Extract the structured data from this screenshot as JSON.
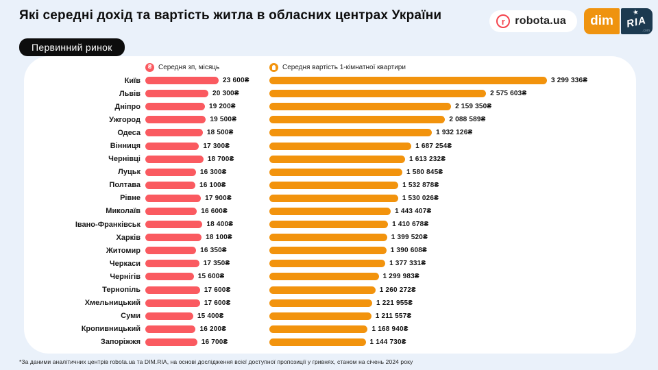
{
  "page": {
    "title": "Які середні дохід та вартість житла в обласних центрах України",
    "badge": "Первинний ринок",
    "footnote": "*За даними аналітичних центрів  robota.ua та DIM.RIA, на основі дослідження всієї доступної пропозиції у гривнях, станом на січень 2024 року"
  },
  "logos": {
    "robota": "robota.ua",
    "robota_icon_letter": "r",
    "dim": "dim",
    "ria": "RIA",
    "ria_star": "★",
    "ria_suffix": ".com"
  },
  "legend": {
    "salary": "Середня зп, місяць",
    "apartment": "Середня вартість 1-кімнатної квартири"
  },
  "colors": {
    "background": "#EAF1FA",
    "card": "#FFFFFF",
    "badge_bg": "#0D0D0D",
    "salary_bar": "#FA5A60",
    "apartment_bar": "#F2930D",
    "dim_box": "#EF930F",
    "ria_box": "#1C3A50",
    "robota_red": "#F4434C"
  },
  "chart_data": {
    "type": "bar",
    "orientation": "horizontal",
    "title": "Які середні дохід та вартість житла в обласних центрах України",
    "subtitle": "Первинний ринок",
    "legend_position": "top",
    "grid": false,
    "categories": [
      "Київ",
      "Львів",
      "Дніпро",
      "Ужгород",
      "Одеса",
      "Вінниця",
      "Чернівці",
      "Луцьк",
      "Полтава",
      "Рівне",
      "Миколаїв",
      "Івано-Франківськ",
      "Харків",
      "Житомир",
      "Черкаси",
      "Чернігів",
      "Тернопіль",
      "Хмельницький",
      "Суми",
      "Кропивницький",
      "Запоріжжя"
    ],
    "series": [
      {
        "name": "Середня зп, місяць",
        "unit": "₴",
        "scale_max": 23600,
        "values": [
          23600,
          20300,
          19200,
          19500,
          18500,
          17300,
          18700,
          16300,
          16100,
          17900,
          16600,
          18400,
          18100,
          16350,
          17350,
          15600,
          17600,
          17600,
          15400,
          16200,
          16700
        ],
        "labels": [
          "23 600₴",
          "20 300₴",
          "19 200₴",
          "19 500₴",
          "18 500₴",
          "17 300₴",
          "18 700₴",
          "16 300₴",
          "16 100₴",
          "17 900₴",
          "16 600₴",
          "18 400₴",
          "18 100₴",
          "16 350₴",
          "17 350₴",
          "15 600₴",
          "17 600₴",
          "17 600₴",
          "15 400₴",
          "16 200₴",
          "16 700₴"
        ]
      },
      {
        "name": "Середня вартість 1-кімнатної квартири",
        "unit": "₴",
        "scale_max": 3299336,
        "values": [
          3299336,
          2575603,
          2159350,
          2088589,
          1932126,
          1687254,
          1613232,
          1580845,
          1532878,
          1530026,
          1443407,
          1410678,
          1399520,
          1390608,
          1377331,
          1299983,
          1260272,
          1221955,
          1211557,
          1168940,
          1144730
        ],
        "labels": [
          "3 299 336₴",
          "2 575 603₴",
          "2 159 350₴",
          "2 088 589₴",
          "1 932 126₴",
          "1 687 254₴",
          "1 613 232₴",
          "1 580 845₴",
          "1 532 878₴",
          "1 530 026₴",
          "1 443 407₴",
          "1 410 678₴",
          "1 399 520₴",
          "1 390 608₴",
          "1 377 331₴",
          "1 299 983₴",
          "1 260 272₴",
          "1 221 955₴",
          "1 211 557₴",
          "1 168 940₴",
          "1 144 730₴"
        ]
      }
    ]
  }
}
